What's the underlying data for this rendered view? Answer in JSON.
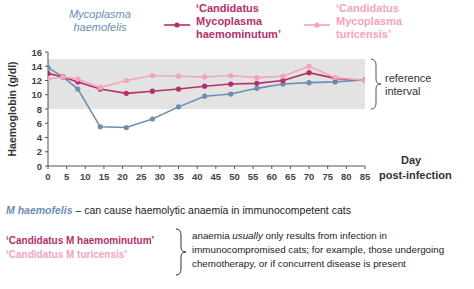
{
  "chart_data": {
    "type": "line",
    "x_label": "Day post-infection",
    "y_label": "Haemoglobin (g/dl)",
    "x": [
      0,
      4,
      8,
      14,
      21,
      28,
      35,
      42,
      49,
      56,
      63,
      70,
      77,
      85
    ],
    "series": [
      {
        "name": "Mycoplasma haemofelis",
        "color": "#6d8db3",
        "marker": "circle",
        "values": [
          13.8,
          12.5,
          10.8,
          5.5,
          5.4,
          6.6,
          8.3,
          9.8,
          10.1,
          10.9,
          11.5,
          11.7,
          11.8,
          12.1
        ]
      },
      {
        "name": "‘Candidatus Mycoplasma haemominutum’",
        "color": "#b3306a",
        "marker": "circle",
        "values": [
          13.0,
          12.5,
          11.8,
          10.8,
          10.2,
          10.5,
          10.8,
          11.2,
          11.5,
          11.6,
          12.0,
          13.1,
          12.3,
          12.0
        ]
      },
      {
        "name": "‘Candidatus Mycoplasma turicensis’",
        "color": "#f4a3bf",
        "marker": "circle",
        "values": [
          12.2,
          12.5,
          12.2,
          11.0,
          12.0,
          12.7,
          12.6,
          12.5,
          12.7,
          12.4,
          12.6,
          14.0,
          12.4,
          12.0
        ]
      }
    ],
    "xlim": [
      0,
      85
    ],
    "xticks": [
      0,
      5,
      10,
      15,
      20,
      25,
      30,
      35,
      40,
      45,
      50,
      55,
      60,
      65,
      70,
      75,
      80,
      85
    ],
    "ylim": [
      0,
      16
    ],
    "yticks": [
      0,
      2,
      4,
      6,
      8,
      10,
      12,
      14,
      16
    ],
    "grid": false,
    "reference_band": {
      "label": "reference interval",
      "ymin": 8,
      "ymax": 15
    },
    "notes": [
      {
        "labels": [
          "M haemofelis"
        ],
        "colors": [
          "#6d8db3"
        ],
        "text": [
          [
            " – can cause haemolytic anaemia in immunocompetent cats"
          ]
        ]
      },
      {
        "labels": [
          "‘Candidatus M haemominutum’",
          "‘Candidatus M turicensis’"
        ],
        "colors": [
          "#b3306a",
          "#f4a3bf"
        ],
        "text": [
          [
            "anaemia ",
            "usually",
            " only results from infection in"
          ],
          [
            "immunocompromised cats; for example, those undergoing"
          ],
          [
            "chemotherapy, or if concurrent disease is present"
          ]
        ]
      }
    ]
  }
}
